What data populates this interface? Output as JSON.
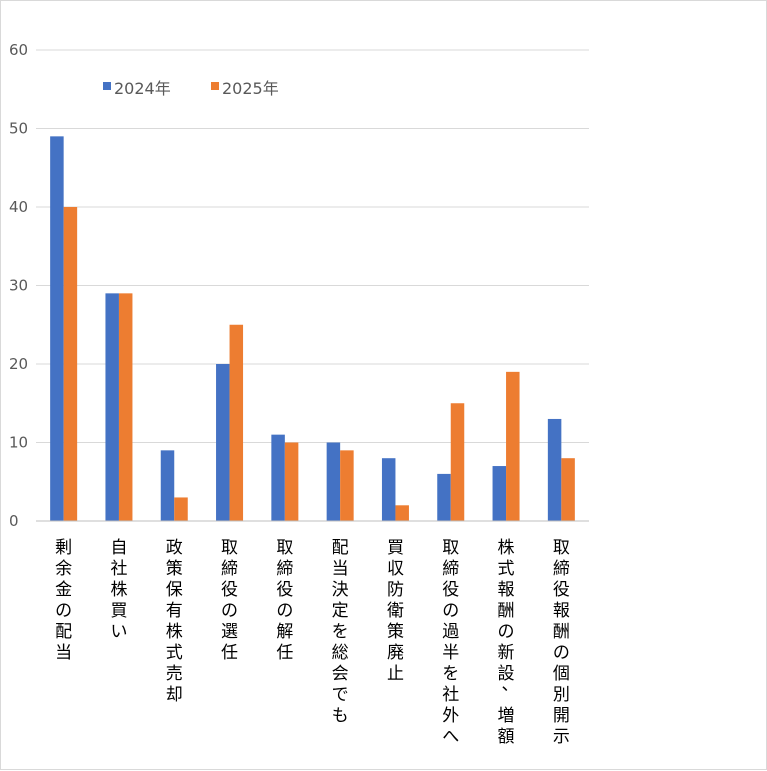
{
  "chart_data": {
    "type": "bar",
    "categories": [
      "剰余金の配当",
      "自社株買い",
      "政策保有株式売却",
      "取締役の選任",
      "取締役の解任",
      "配当決定を総会でも",
      "買収防衛策廃止",
      "取締役の過半を社外へ",
      "株式報酬の新設、増額",
      "取締役報酬の個別開示"
    ],
    "series": [
      {
        "name": "2024年",
        "color": "#4472c4",
        "values": [
          49,
          29,
          9,
          20,
          11,
          10,
          8,
          6,
          7,
          13
        ]
      },
      {
        "name": "2025年",
        "color": "#ed7d31",
        "values": [
          40,
          29,
          3,
          25,
          10,
          9,
          2,
          15,
          19,
          8
        ]
      }
    ],
    "ylim": [
      0,
      60
    ],
    "yticks": [
      0,
      10,
      20,
      30,
      40,
      50,
      60
    ],
    "grid": true,
    "legend": "top-left",
    "title": "",
    "xlabel": "",
    "ylabel": ""
  }
}
